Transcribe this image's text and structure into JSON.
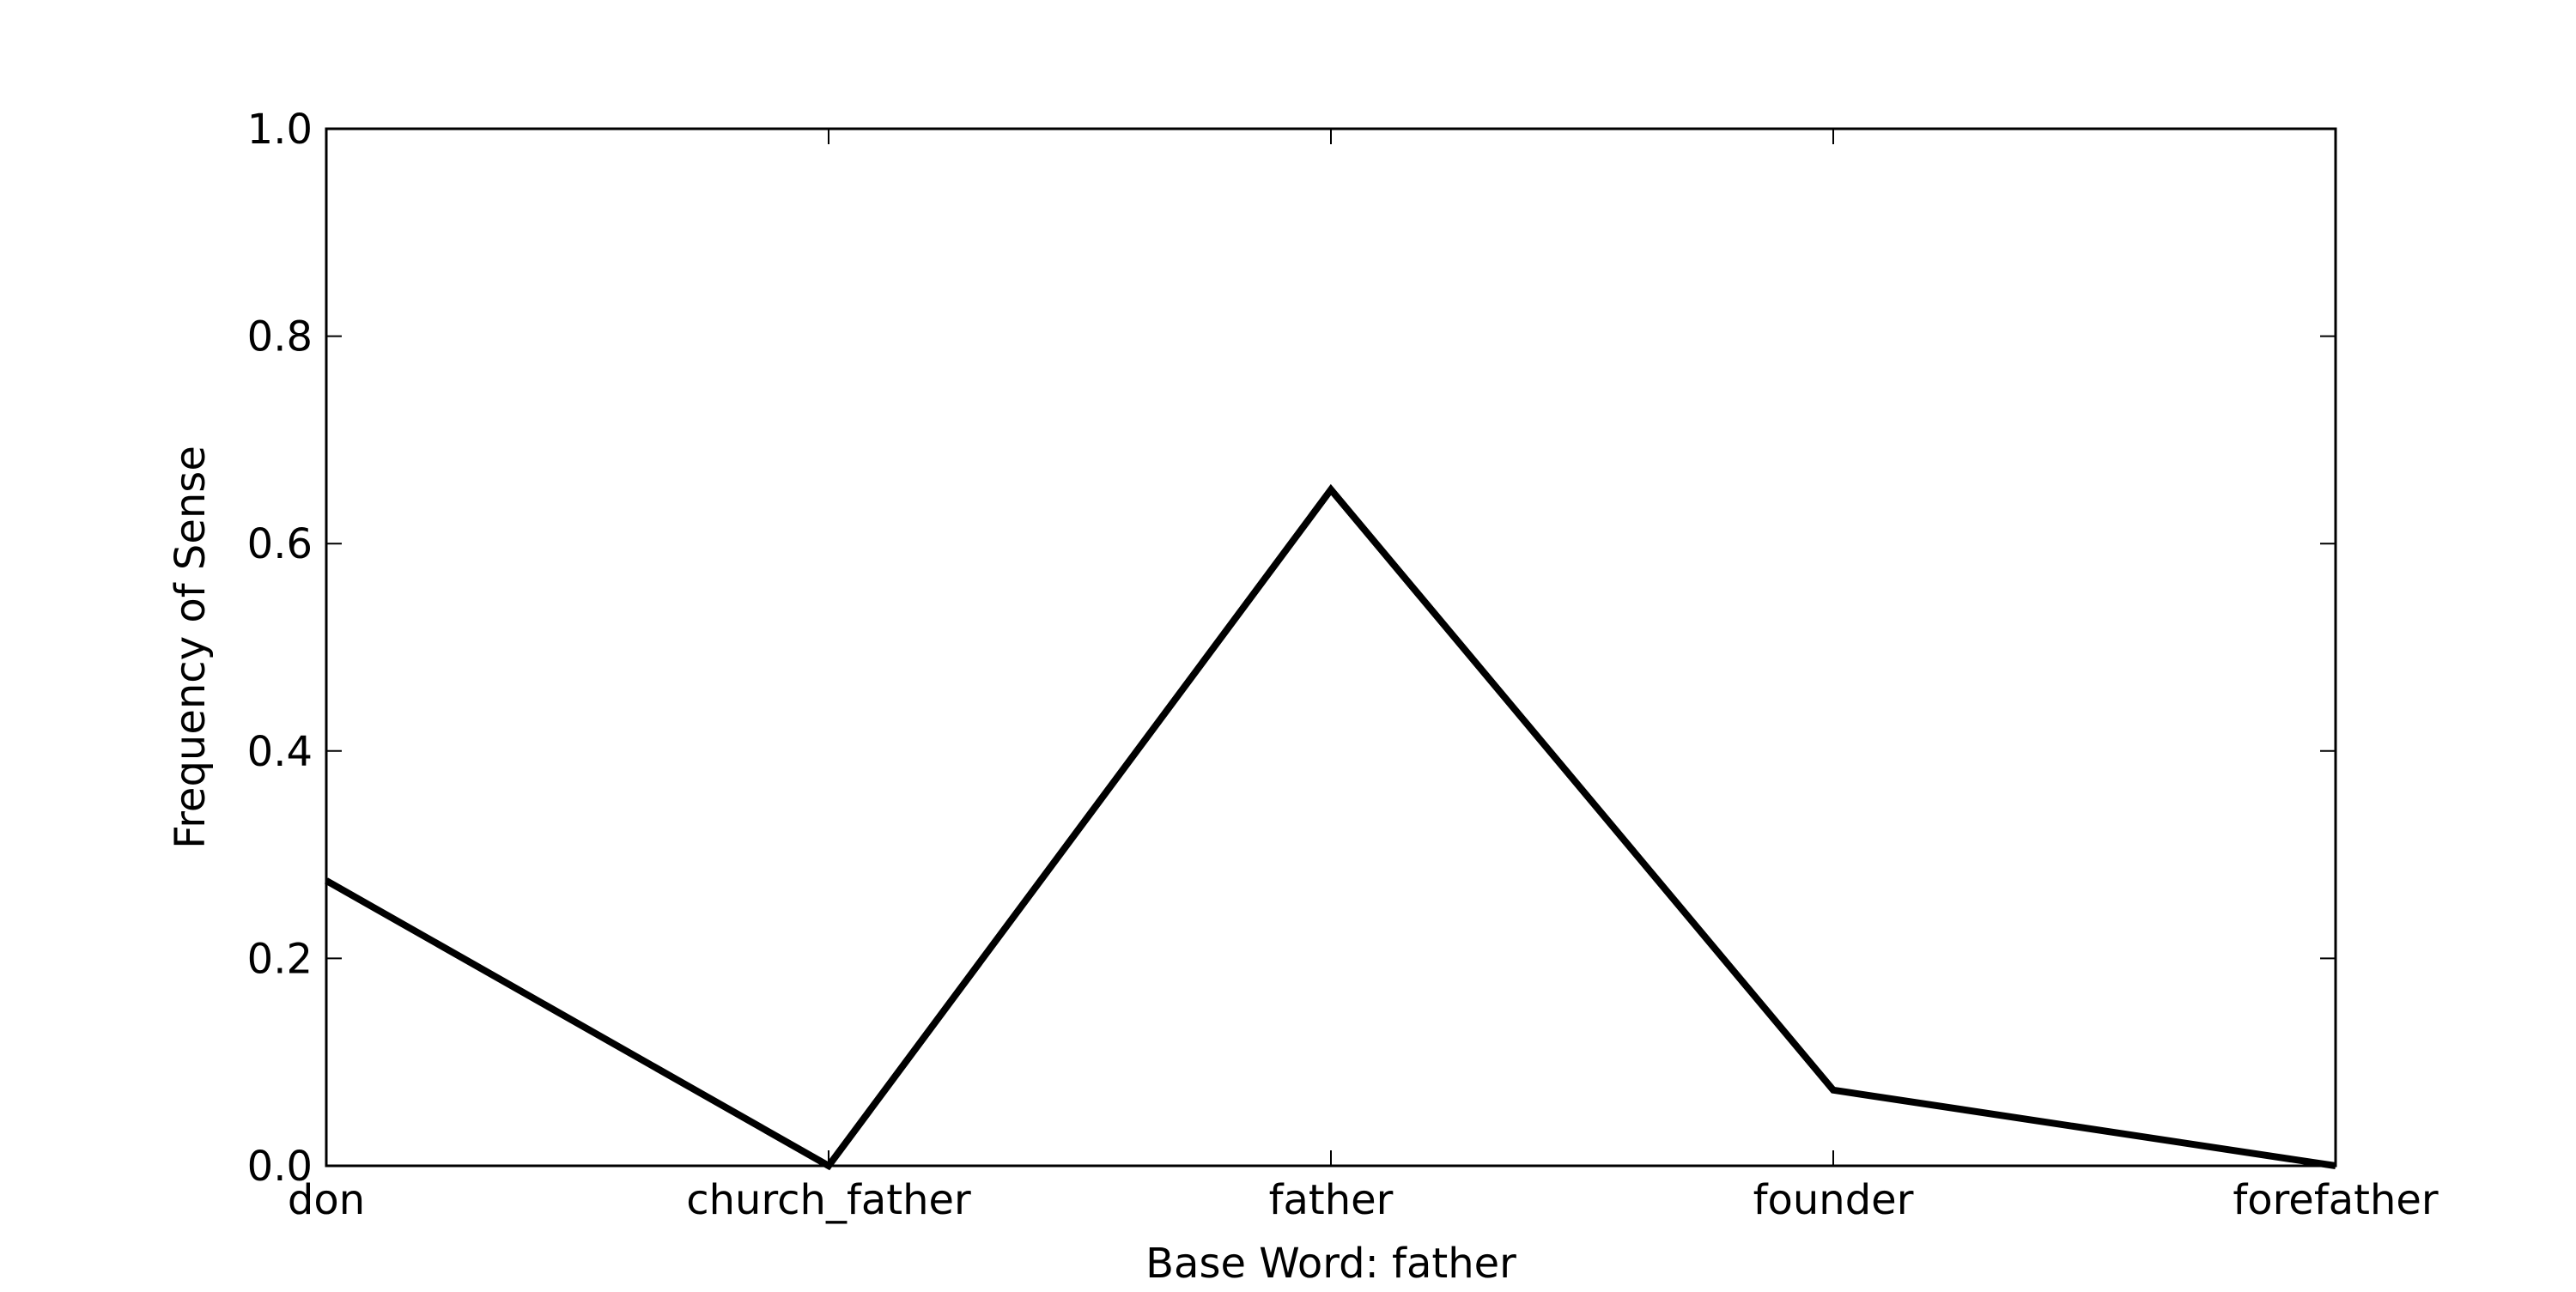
{
  "chart_data": {
    "type": "line",
    "title": "",
    "xlabel": "Base Word: father",
    "ylabel": "Frequency of Sense",
    "categories": [
      "don",
      "church_father",
      "father",
      "founder",
      "forefather"
    ],
    "series": [
      {
        "values": [
          0.275,
          0.0,
          0.652,
          0.073,
          0.0
        ],
        "color": "#000000"
      }
    ],
    "ylim": [
      0.0,
      1.0
    ],
    "yticks": [
      "0.0",
      "0.2",
      "0.4",
      "0.6",
      "0.8",
      "1.0"
    ],
    "grid": false,
    "legend": "none"
  }
}
